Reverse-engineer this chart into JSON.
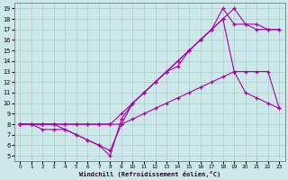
{
  "xlabel": "Windchill (Refroidissement éolien,°C)",
  "bg_color": "#cce8e8",
  "grid_color": "#aacccc",
  "line_color": "#aa00aa",
  "xlim_min": -0.5,
  "xlim_max": 23.5,
  "ylim_min": 4.5,
  "ylim_max": 19.5,
  "xticks": [
    0,
    1,
    2,
    3,
    4,
    5,
    6,
    7,
    8,
    9,
    10,
    11,
    12,
    13,
    14,
    15,
    16,
    17,
    18,
    19,
    20,
    21,
    22,
    23
  ],
  "yticks": [
    5,
    6,
    7,
    8,
    9,
    10,
    11,
    12,
    13,
    14,
    15,
    16,
    17,
    18,
    19
  ],
  "lines": [
    [
      8.0,
      8.0,
      8.0,
      8.0,
      8.0,
      8.0,
      8.0,
      8.0,
      8.0,
      8.0,
      8.5,
      9.0,
      9.5,
      10.0,
      10.5,
      11.0,
      11.5,
      12.0,
      12.5,
      13.0,
      13.0,
      13.0,
      13.0,
      9.5
    ],
    [
      8.0,
      8.0,
      7.5,
      7.5,
      7.5,
      7.0,
      6.5,
      6.0,
      5.0,
      8.5,
      10.0,
      11.0,
      12.0,
      13.0,
      13.5,
      15.0,
      16.0,
      17.0,
      19.0,
      17.5,
      17.5,
      17.0,
      17.0,
      17.0
    ],
    [
      8.0,
      8.0,
      8.0,
      8.0,
      8.0,
      8.0,
      8.0,
      8.0,
      8.0,
      9.0,
      10.0,
      11.0,
      12.0,
      13.0,
      14.0,
      15.0,
      16.0,
      17.0,
      18.0,
      19.0,
      17.5,
      17.5,
      17.0,
      17.0
    ],
    [
      8.0,
      8.0,
      8.0,
      8.0,
      7.5,
      7.0,
      6.5,
      6.0,
      5.5,
      8.0,
      10.0,
      11.0,
      12.0,
      13.0,
      14.0,
      15.0,
      16.0,
      17.0,
      18.0,
      13.0,
      11.0,
      10.5,
      10.0,
      9.5
    ]
  ]
}
